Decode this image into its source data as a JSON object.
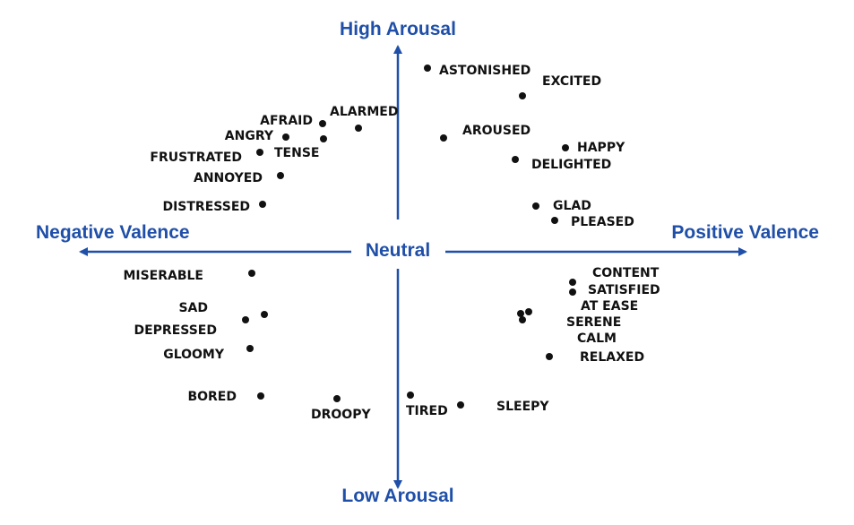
{
  "axes": {
    "color": "#1f4fa8",
    "top": "High Arousal",
    "bottom": "Low Arousal",
    "left": "Negative Valence",
    "right": "Positive Valence",
    "center": "Neutral"
  },
  "emotions": [
    {
      "id": "astonished",
      "label": "ASTONISHED"
    },
    {
      "id": "excited",
      "label": "EXCITED"
    },
    {
      "id": "aroused",
      "label": "AROUSED"
    },
    {
      "id": "happy",
      "label": "HAPPY"
    },
    {
      "id": "delighted",
      "label": "DELIGHTED"
    },
    {
      "id": "glad",
      "label": "GLAD"
    },
    {
      "id": "pleased",
      "label": "PLEASED"
    },
    {
      "id": "afraid",
      "label": "AFRAID"
    },
    {
      "id": "alarmed",
      "label": "ALARMED"
    },
    {
      "id": "angry",
      "label": "ANGRY"
    },
    {
      "id": "tense",
      "label": "TENSE"
    },
    {
      "id": "frustrated",
      "label": "FRUSTRATED"
    },
    {
      "id": "annoyed",
      "label": "ANNOYED"
    },
    {
      "id": "distressed",
      "label": "DISTRESSED"
    },
    {
      "id": "miserable",
      "label": "MISERABLE"
    },
    {
      "id": "sad",
      "label": "SAD"
    },
    {
      "id": "depressed",
      "label": "DEPRESSED"
    },
    {
      "id": "gloomy",
      "label": "GLOOMY"
    },
    {
      "id": "bored",
      "label": "BORED"
    },
    {
      "id": "droopy",
      "label": "DROOPY"
    },
    {
      "id": "tired",
      "label": "TIRED"
    },
    {
      "id": "sleepy",
      "label": "SLEEPY"
    },
    {
      "id": "content",
      "label": "CONTENT"
    },
    {
      "id": "satisfied",
      "label": "SATISFIED"
    },
    {
      "id": "at_ease",
      "label": "AT EASE"
    },
    {
      "id": "serene",
      "label": "SERENE"
    },
    {
      "id": "calm",
      "label": "CALM"
    },
    {
      "id": "relaxed",
      "label": "RELAXED"
    }
  ]
}
